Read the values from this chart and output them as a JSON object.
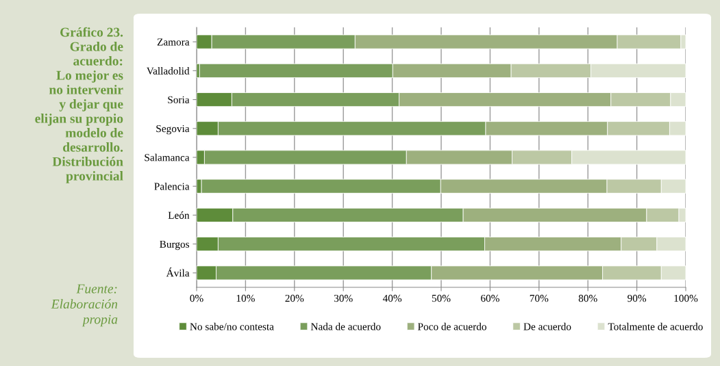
{
  "chart_data": {
    "type": "bar",
    "orientation": "horizontal",
    "stacked": true,
    "title": "Gráfico 23.\nGrado de\nacuerdo:\nLo mejor es\nno intervenir\ny dejar que\nelijan su propio\nmodelo de\ndesarrollo.\nDistribución\nprovincial",
    "annotations": [
      "Fuente:\nElaboración\npropia"
    ],
    "categories": [
      "Zamora",
      "Valladolid",
      "Soria",
      "Segovia",
      "Salamanca",
      "Palencia",
      "León",
      "Burgos",
      "Ávila"
    ],
    "series": [
      {
        "name": "No sabe/no contesta",
        "color": "#5e8c3a",
        "values": [
          3.1,
          0.6,
          7.2,
          4.4,
          1.6,
          1.0,
          7.4,
          4.4,
          4.0
        ]
      },
      {
        "name": "Nada de acuerdo",
        "color": "#7a9e5c",
        "values": [
          29.3,
          39.5,
          34.2,
          54.7,
          41.3,
          48.9,
          47.1,
          54.5,
          44.0
        ]
      },
      {
        "name": "Poco de acuerdo",
        "color": "#9db07e",
        "values": [
          53.6,
          24.2,
          43.3,
          24.9,
          21.6,
          34.0,
          37.5,
          27.9,
          35.0
        ]
      },
      {
        "name": "De acuerdo",
        "color": "#bcc8a4",
        "values": [
          13.0,
          16.3,
          12.2,
          12.7,
          12.2,
          11.1,
          6.6,
          7.3,
          12.0
        ]
      },
      {
        "name": "Totalmente de acuerdo",
        "color": "#dce2cf",
        "values": [
          1.0,
          19.4,
          3.1,
          3.3,
          23.3,
          5.0,
          1.4,
          5.9,
          5.0
        ]
      }
    ],
    "xlim": [
      0,
      100
    ],
    "xticks": [
      {
        "value": 0,
        "label": "0%"
      },
      {
        "value": 10,
        "label": "10%"
      },
      {
        "value": 20,
        "label": "20%"
      },
      {
        "value": 30,
        "label": "30%"
      },
      {
        "value": 40,
        "label": "40%"
      },
      {
        "value": 50,
        "label": "50%"
      },
      {
        "value": 60,
        "label": "60%"
      },
      {
        "value": 70,
        "label": "70%"
      },
      {
        "value": 80,
        "label": "80%"
      },
      {
        "value": 90,
        "label": "90%"
      },
      {
        "value": 100,
        "label": "100%"
      }
    ],
    "grid": "x",
    "legend": "bottom"
  }
}
